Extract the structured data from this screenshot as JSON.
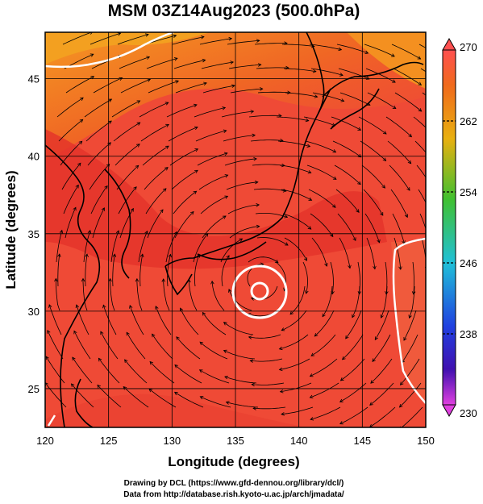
{
  "title": "MSM 03Z14Aug2023 (500.0hPa)",
  "map": {
    "lon_range": [
      120,
      150
    ],
    "lat_range": [
      22.5,
      48
    ],
    "x_ticks": [
      120,
      125,
      130,
      135,
      140,
      145,
      150
    ],
    "y_ticks": [
      25,
      30,
      35,
      40,
      45
    ],
    "x_label": "Longitude (degrees)",
    "y_label": "Latitude  (degrees)",
    "grid": true,
    "field": "temperature with streamlines",
    "colors": {
      "warm_field": "#ef4a36",
      "warmer_field": "#e4322a",
      "northwest_field": "#f2861e",
      "coastline": "#000000",
      "contour": "#ffffff"
    },
    "cyclone_center": {
      "lon": 137,
      "lat": 32
    }
  },
  "colorbar": {
    "ticks": [
      "270",
      "262",
      "254",
      "246",
      "238",
      "230"
    ],
    "colors": [
      "#ff5050",
      "#f07018",
      "#e8c010",
      "#30c030",
      "#20c0d8",
      "#2050e0",
      "#4010b0",
      "#e040e0"
    ]
  },
  "credits": {
    "line1": "Drawing by DCL (https://www.gfd‐dennou.org/library/dcl/)",
    "line2": "Data from http://database.rish.kyoto‐u.ac.jp/arch/jmadata/"
  }
}
